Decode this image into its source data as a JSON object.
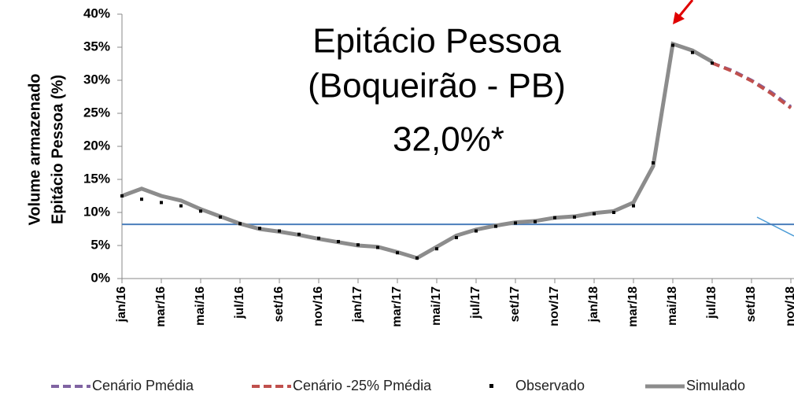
{
  "chart_data": {
    "type": "line",
    "annotations": [
      "Epitácio Pessoa",
      "(Boqueirão - PB)",
      "32,0%*"
    ],
    "y_label": [
      "Volume armazenado",
      "Epitácio Pessoa  (%)"
    ],
    "xlim": [
      "2016-01",
      "2018-11"
    ],
    "xticks": [
      {
        "value": "2016-01",
        "label": "jan/16"
      },
      {
        "value": "2016-03",
        "label": "mar/16"
      },
      {
        "value": "2016-05",
        "label": "mai/16"
      },
      {
        "value": "2016-07",
        "label": "jul/16"
      },
      {
        "value": "2016-09",
        "label": "set/16"
      },
      {
        "value": "2016-11",
        "label": "nov/16"
      },
      {
        "value": "2017-01",
        "label": "jan/17"
      },
      {
        "value": "2017-03",
        "label": "mar/17"
      },
      {
        "value": "2017-05",
        "label": "mai/17"
      },
      {
        "value": "2017-07",
        "label": "jul/17"
      },
      {
        "value": "2017-09",
        "label": "set/17"
      },
      {
        "value": "2017-11",
        "label": "nov/17"
      },
      {
        "value": "2018-01",
        "label": "jan/18"
      },
      {
        "value": "2018-03",
        "label": "mar/18"
      },
      {
        "value": "2018-05",
        "label": "mai/18"
      },
      {
        "value": "2018-07",
        "label": "jul/18"
      },
      {
        "value": "2018-09",
        "label": "set/18"
      },
      {
        "value": "2018-11",
        "label": "nov/18"
      }
    ],
    "ylim": [
      0,
      40
    ],
    "yticks": [
      {
        "value": 0,
        "label": "0%"
      },
      {
        "value": 5,
        "label": "5%"
      },
      {
        "value": 10,
        "label": "10%"
      },
      {
        "value": 15,
        "label": "15%"
      },
      {
        "value": 20,
        "label": "20%"
      },
      {
        "value": 25,
        "label": "25%"
      },
      {
        "value": 30,
        "label": "30%"
      },
      {
        "value": 35,
        "label": "35%"
      },
      {
        "value": 40,
        "label": "40%"
      }
    ],
    "reference_line": {
      "value": 8.2,
      "color": "#4a7ebb"
    },
    "series": [
      {
        "name": "Cenário Pmédia",
        "color": "#8064a2",
        "style": "dashed",
        "x": [
          "2018-07",
          "2018-08",
          "2018-09",
          "2018-10",
          "2018-11"
        ],
        "values": [
          32.6,
          31.5,
          30.0,
          28.2,
          26.0
        ]
      },
      {
        "name": "Cenário -25% Pmédia",
        "color": "#c0504d",
        "style": "dashed",
        "x": [
          "2018-07",
          "2018-08",
          "2018-09",
          "2018-10",
          "2018-11"
        ],
        "values": [
          32.6,
          31.4,
          29.9,
          28.0,
          25.8
        ]
      },
      {
        "name": "Observado",
        "color": "#000000",
        "style": "markers",
        "x": [
          "2016-01",
          "2016-02",
          "2016-03",
          "2016-04",
          "2016-05",
          "2016-06",
          "2016-07",
          "2016-08",
          "2016-09",
          "2016-10",
          "2016-11",
          "2016-12",
          "2017-01",
          "2017-02",
          "2017-03",
          "2017-04",
          "2017-05",
          "2017-06",
          "2017-07",
          "2017-08",
          "2017-09",
          "2017-10",
          "2017-11",
          "2017-12",
          "2018-01",
          "2018-02",
          "2018-03",
          "2018-04",
          "2018-05",
          "2018-06",
          "2018-07"
        ],
        "values": [
          12.5,
          12.0,
          11.5,
          11.0,
          10.2,
          9.3,
          8.3,
          7.6,
          7.2,
          6.7,
          6.1,
          5.6,
          5.1,
          4.7,
          3.9,
          3.1,
          4.5,
          6.2,
          7.2,
          7.9,
          8.4,
          8.6,
          9.2,
          9.3,
          9.8,
          10.0,
          11.0,
          17.5,
          35.3,
          34.2,
          32.6
        ]
      },
      {
        "name": "Simulado",
        "color": "#8c8c8c",
        "style": "solid",
        "x": [
          "2016-01",
          "2016-02",
          "2016-03",
          "2016-04",
          "2016-05",
          "2016-06",
          "2016-07",
          "2016-08",
          "2016-09",
          "2016-10",
          "2016-11",
          "2016-12",
          "2017-01",
          "2017-02",
          "2017-03",
          "2017-04",
          "2017-05",
          "2017-06",
          "2017-07",
          "2017-08",
          "2017-09",
          "2017-10",
          "2017-11",
          "2017-12",
          "2018-01",
          "2018-02",
          "2018-03",
          "2018-04",
          "2018-05",
          "2018-06",
          "2018-07"
        ],
        "values": [
          12.5,
          13.6,
          12.5,
          11.8,
          10.5,
          9.4,
          8.3,
          7.5,
          7.1,
          6.6,
          6.0,
          5.5,
          5.0,
          4.8,
          4.0,
          3.1,
          4.8,
          6.5,
          7.4,
          8.0,
          8.5,
          8.7,
          9.2,
          9.4,
          9.9,
          10.2,
          11.5,
          17.0,
          35.5,
          34.5,
          32.8
        ]
      }
    ]
  }
}
